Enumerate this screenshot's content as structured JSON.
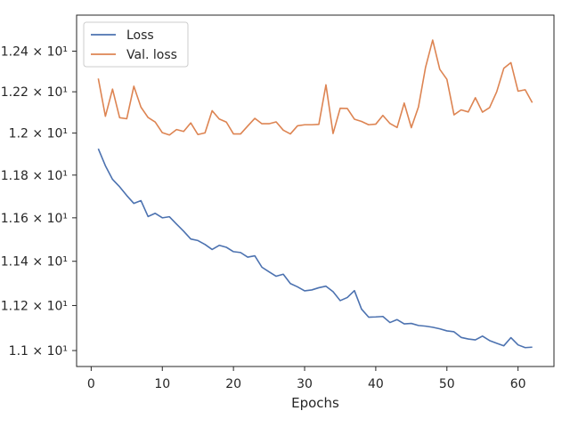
{
  "chart_data": {
    "type": "line",
    "title": "",
    "xlabel": "Epochs",
    "ylabel": "",
    "y_scale": "log",
    "xlim": [
      -2.05,
      65.05
    ],
    "ylim": [
      10.93,
      12.58
    ],
    "grid": false,
    "legend_position": "top-left",
    "x_ticks": [
      0,
      10,
      20,
      30,
      40,
      50,
      60
    ],
    "x_tick_labels": [
      "0",
      "10",
      "20",
      "30",
      "40",
      "50",
      "60"
    ],
    "y_ticks": [
      11.0,
      11.2,
      11.4,
      11.6,
      11.8,
      12.0,
      12.2,
      12.4
    ],
    "y_tick_labels": [
      "1.1 × 10¹",
      "1.12 × 10¹",
      "1.14 × 10¹",
      "1.16 × 10¹",
      "1.18 × 10¹",
      "1.2 × 10¹",
      "1.22 × 10¹",
      "1.24 × 10¹"
    ],
    "x": [
      1,
      2,
      3,
      4,
      5,
      6,
      7,
      8,
      9,
      10,
      11,
      12,
      13,
      14,
      15,
      16,
      17,
      18,
      19,
      20,
      21,
      22,
      23,
      24,
      25,
      26,
      27,
      28,
      29,
      30,
      31,
      32,
      33,
      34,
      35,
      36,
      37,
      38,
      39,
      40,
      41,
      42,
      43,
      44,
      45,
      46,
      47,
      48,
      49,
      50,
      51,
      52,
      53,
      54,
      55,
      56,
      57,
      58,
      59,
      60,
      61,
      62
    ],
    "series": [
      {
        "name": "Loss",
        "color": "#4c72b0",
        "values": [
          11.925,
          11.844,
          11.78,
          11.745,
          11.704,
          11.667,
          11.68,
          11.606,
          11.621,
          11.6,
          11.605,
          11.571,
          11.538,
          11.502,
          11.495,
          11.477,
          11.454,
          11.473,
          11.464,
          11.444,
          11.44,
          11.419,
          11.425,
          11.373,
          11.352,
          11.332,
          11.341,
          11.299,
          11.284,
          11.266,
          11.27,
          11.28,
          11.287,
          11.262,
          11.222,
          11.236,
          11.267,
          11.184,
          11.148,
          11.149,
          11.151,
          11.124,
          11.137,
          11.118,
          11.12,
          11.111,
          11.108,
          11.103,
          11.096,
          11.087,
          11.083,
          11.058,
          11.051,
          11.047,
          11.064,
          11.044,
          11.032,
          11.021,
          11.057,
          11.025,
          11.013,
          11.015
        ]
      },
      {
        "name": "Val. loss",
        "color": "#dd8452",
        "values": [
          12.265,
          12.081,
          12.213,
          12.074,
          12.069,
          12.227,
          12.125,
          12.075,
          12.053,
          12.002,
          11.991,
          12.017,
          12.008,
          12.049,
          11.993,
          12.001,
          12.108,
          12.068,
          12.053,
          11.996,
          11.996,
          12.034,
          12.071,
          12.045,
          12.045,
          12.054,
          12.014,
          11.996,
          12.035,
          12.04,
          12.04,
          12.042,
          12.234,
          11.998,
          12.12,
          12.119,
          12.067,
          12.056,
          12.04,
          12.043,
          12.085,
          12.046,
          12.027,
          12.145,
          12.026,
          12.126,
          12.32,
          12.455,
          12.31,
          12.261,
          12.088,
          12.112,
          12.102,
          12.171,
          12.101,
          12.123,
          12.2,
          12.315,
          12.343,
          12.203,
          12.21,
          12.147
        ]
      }
    ]
  }
}
